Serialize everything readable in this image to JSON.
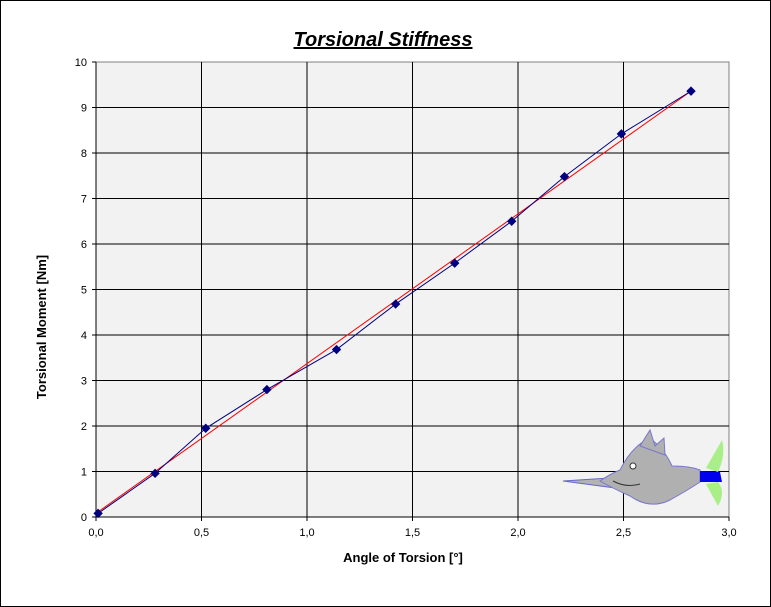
{
  "chart_data": {
    "type": "scatter",
    "title": "Torsional Stiffness",
    "xlabel": "Angle of Torsion [°]",
    "ylabel": "Torsional Moment [Nm]",
    "xlim": [
      0,
      3
    ],
    "ylim": [
      0,
      10
    ],
    "x_ticks": [
      "0,0",
      "0,5",
      "1,0",
      "1,5",
      "2,0",
      "2,5",
      "3,0"
    ],
    "y_ticks": [
      "0",
      "1",
      "2",
      "3",
      "4",
      "5",
      "6",
      "7",
      "8",
      "9",
      "10"
    ],
    "grid": true,
    "legend": "none",
    "series": [
      {
        "x": [
          0.01,
          0.28,
          0.52,
          0.81,
          1.14,
          1.42,
          1.7,
          1.97,
          2.22,
          2.49,
          2.82
        ],
        "y": [
          0.08,
          0.96,
          1.95,
          2.8,
          3.68,
          4.68,
          5.58,
          6.5,
          7.48,
          8.42,
          9.36
        ],
        "color": "#000080",
        "marker": "diamond"
      },
      {
        "type": "trendline",
        "x": [
          0.0,
          2.82
        ],
        "y": [
          0.08,
          9.36
        ],
        "color": "#ff0000"
      }
    ],
    "plot_background": "#f2f2f2",
    "decoration": "swordfish-icon"
  }
}
